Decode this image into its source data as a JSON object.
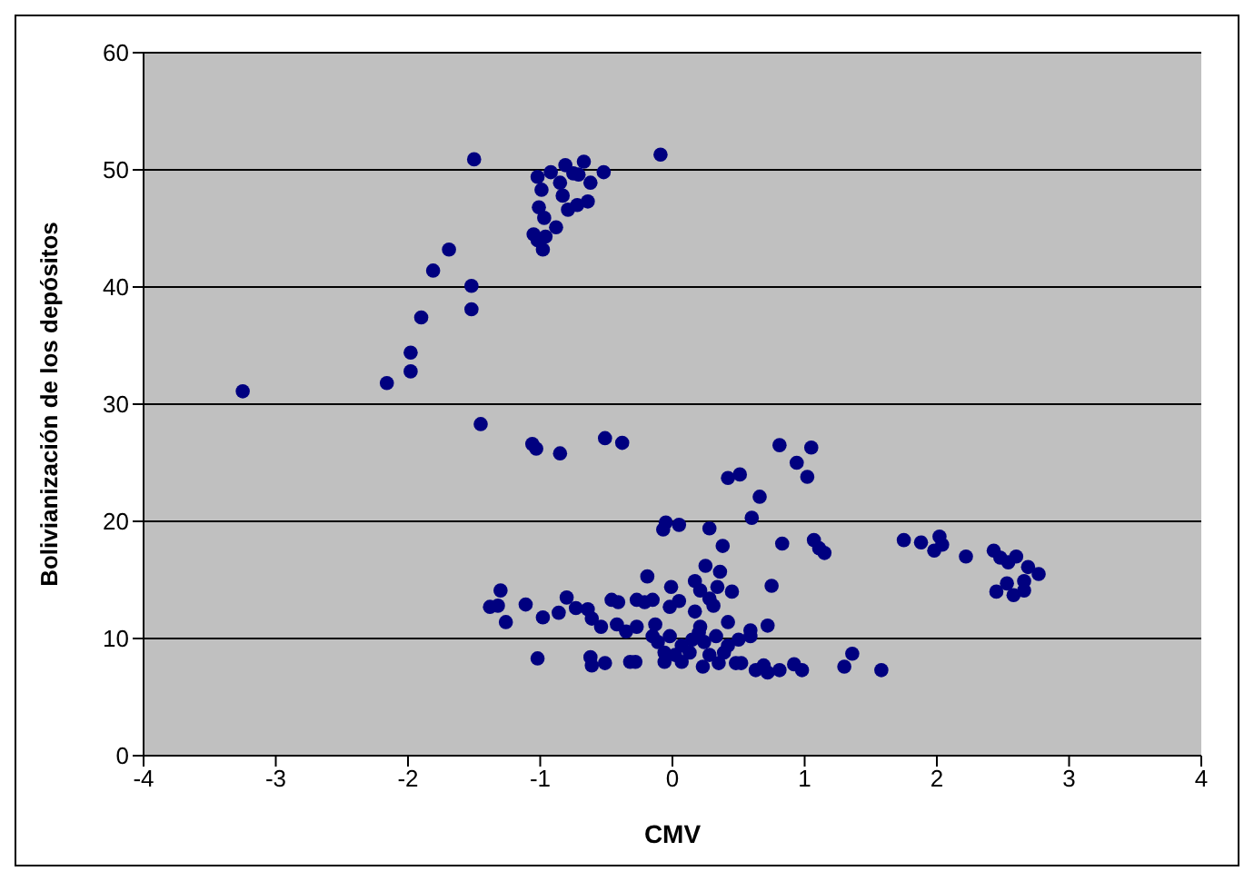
{
  "chart_data": {
    "type": "scatter",
    "xlabel": "CMV",
    "ylabel": "Bolivianización de los depósitos",
    "x": [
      -3.25,
      -2.16,
      -1.98,
      -1.98,
      -1.9,
      -1.81,
      -1.69,
      -1.52,
      -1.52,
      -1.5,
      -1.45,
      -1.06,
      -1.03,
      -0.85,
      -0.51,
      -0.38,
      -0.09,
      -1.02,
      -0.92,
      -0.99,
      -0.85,
      -0.81,
      -0.75,
      -0.71,
      -0.67,
      -0.52,
      -0.62,
      -0.83,
      -0.64,
      -0.72,
      -0.79,
      -1.01,
      -0.97,
      -0.88,
      -1.05,
      -1.02,
      -0.96,
      -0.98,
      0.81,
      1.05,
      0.94,
      1.02,
      0.42,
      0.51,
      0.66,
      0.6,
      -0.05,
      -0.07,
      0.05,
      0.28,
      0.38,
      0.83,
      1.07,
      1.11,
      1.15,
      0.25,
      0.36,
      -0.19,
      0.17,
      0.75,
      -0.01,
      0.21,
      0.34,
      0.45,
      0.28,
      0.31,
      0.05,
      -0.02,
      -1.3,
      -1.38,
      -1.32,
      -1.26,
      -1.11,
      -0.98,
      -0.86,
      -0.8,
      -0.73,
      -0.64,
      -0.61,
      -0.54,
      -0.46,
      -0.41,
      -0.42,
      -0.35,
      -0.27,
      -0.21,
      -0.15,
      -0.27,
      -0.13,
      0.17,
      0.21,
      0.42,
      0.72,
      0.59,
      -1.02,
      -0.62,
      -0.61,
      -0.51,
      -0.32,
      -0.28,
      -0.06,
      0.23,
      0.35,
      0.48,
      0.52,
      0.63,
      0.69,
      0.72,
      0.81,
      0.92,
      0.98,
      1.3,
      1.36,
      1.58,
      -0.11,
      -0.02,
      0.07,
      0.15,
      0.24,
      0.33,
      0.42,
      0.5,
      0.59,
      -0.06,
      0.02,
      0.13,
      0.28,
      0.39,
      0.2,
      -0.15,
      0.07,
      1.75,
      1.88,
      2.02,
      2.04,
      1.98,
      2.22,
      2.43,
      2.48,
      2.54,
      2.6,
      2.69,
      2.77,
      2.45,
      2.53,
      2.58,
      2.66,
      2.66
    ],
    "values": [
      31.1,
      31.8,
      32.8,
      34.4,
      37.4,
      41.4,
      43.2,
      40.1,
      38.1,
      50.9,
      28.3,
      26.6,
      26.2,
      25.8,
      27.1,
      26.7,
      51.3,
      49.4,
      49.8,
      48.3,
      48.9,
      50.4,
      49.7,
      49.6,
      50.7,
      49.8,
      48.9,
      47.8,
      47.3,
      47,
      46.6,
      46.8,
      45.9,
      45.1,
      44.5,
      44,
      44.3,
      43.2,
      26.5,
      26.3,
      25,
      23.8,
      23.7,
      24,
      22.1,
      20.3,
      19.9,
      19.3,
      19.7,
      19.4,
      17.9,
      18.1,
      18.4,
      17.7,
      17.3,
      16.2,
      15.7,
      15.3,
      14.9,
      14.5,
      14.4,
      14.1,
      14.4,
      14,
      13.4,
      12.8,
      13.2,
      12.7,
      14.1,
      12.7,
      12.8,
      11.4,
      12.9,
      11.8,
      12.2,
      13.5,
      12.6,
      12.5,
      11.7,
      11,
      13.3,
      13.1,
      11.2,
      10.6,
      13.3,
      13.1,
      13.3,
      11,
      11.2,
      12.3,
      11,
      11.4,
      11.1,
      10.7,
      8.3,
      8.4,
      7.7,
      7.9,
      8,
      8,
      8,
      7.6,
      7.9,
      7.9,
      7.9,
      7.3,
      7.7,
      7.1,
      7.3,
      7.8,
      7.3,
      7.6,
      8.7,
      7.3,
      9.7,
      10.2,
      9.4,
      9.9,
      9.7,
      10.2,
      9.4,
      9.9,
      10.2,
      8.8,
      8.6,
      8.8,
      8.6,
      8.8,
      10.5,
      10.2,
      8,
      18.4,
      18.2,
      18.7,
      18,
      17.5,
      17,
      17.5,
      16.9,
      16.5,
      17,
      16.1,
      15.5,
      14,
      14.7,
      13.7,
      14.9,
      14.1
    ],
    "color": "#000080",
    "marker": "circle",
    "xlim": [
      -4,
      4
    ],
    "xticks": [
      -4,
      -3,
      -2,
      -1,
      0,
      1,
      2,
      3,
      4
    ],
    "ylim": [
      0,
      60
    ],
    "yticks": [
      0,
      10,
      20,
      30,
      40,
      50,
      60
    ],
    "grid": "y",
    "legend": false
  }
}
